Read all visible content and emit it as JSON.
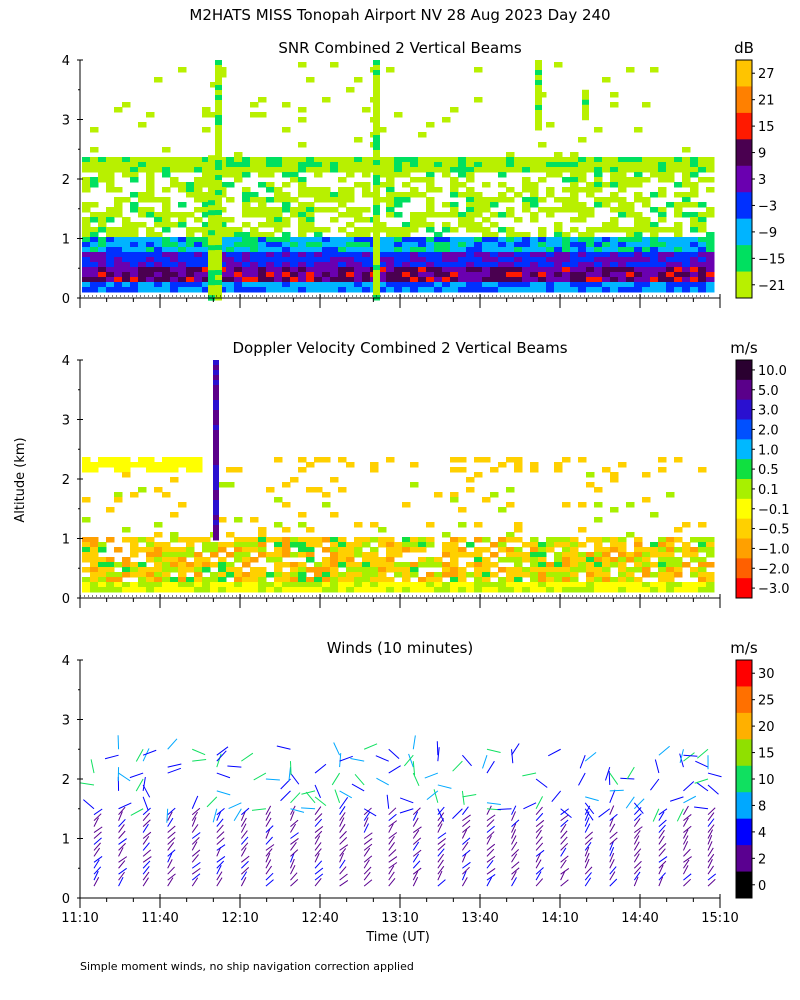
{
  "title": "M2HATS MISS Tonopah Airport NV  28 Aug 2023 Day 240",
  "y_axis_label": "Altitude (km)",
  "x_axis_label": "Time (UT)",
  "footnote": "Simple moment winds, no ship navigation correction applied",
  "x_ticks": [
    "11:10",
    "11:40",
    "12:10",
    "12:40",
    "13:10",
    "13:40",
    "14:10",
    "14:40",
    "15:10"
  ],
  "y_ticks": [
    "0",
    "1",
    "2",
    "3",
    "4"
  ],
  "chart_data": [
    {
      "type": "heatmap",
      "title": "SNR Combined 2 Vertical Beams",
      "ylim": [
        0,
        4
      ],
      "colorbar": {
        "unit": "dB",
        "labels": [
          "27",
          "21",
          "15",
          "9",
          "3",
          "−3",
          "−9",
          "−15",
          "−21"
        ],
        "colors": [
          "#ffc400",
          "#ff8000",
          "#ff1a00",
          "#4a0050",
          "#6a00b0",
          "#0030ff",
          "#00b4ff",
          "#00e060",
          "#b8f000"
        ]
      },
      "features": {
        "strong_layer_km": [
          0.3,
          0.55
        ],
        "boundary_layer_top_km": 1.1,
        "elevated_layer_km": 2.3,
        "echo_columns_time": [
          "12:00",
          "12:05",
          "13:05",
          "13:45",
          "14:20"
        ]
      }
    },
    {
      "type": "heatmap",
      "title": "Doppler Velocity Combined 2 Vertical Beams",
      "ylim": [
        0,
        4
      ],
      "colorbar": {
        "unit": "m/s",
        "labels": [
          "10.0",
          "5.0",
          "3.0",
          "2.0",
          "1.0",
          "0.5",
          "0.1",
          "−0.1",
          "−0.5",
          "−1.0",
          "−2.0",
          "−3.0"
        ],
        "colors": [
          "#2a0030",
          "#5a008a",
          "#2a10d0",
          "#0050ff",
          "#00b8ff",
          "#10e040",
          "#a8f000",
          "#ffff00",
          "#ffd000",
          "#ffa000",
          "#ff6000",
          "#ff0000"
        ]
      }
    },
    {
      "type": "scatter",
      "title": "Winds (10 minutes)",
      "ylim": [
        0,
        4
      ],
      "colorbar": {
        "unit": "m/s",
        "labels": [
          "30",
          "25",
          "20",
          "15",
          "10",
          "8",
          "4",
          "2",
          "0"
        ],
        "colors": [
          "#ff0000",
          "#ff7000",
          "#ffb000",
          "#90e000",
          "#10e060",
          "#00a8ff",
          "#0000ff",
          "#5a0090",
          "#000000"
        ]
      }
    }
  ]
}
